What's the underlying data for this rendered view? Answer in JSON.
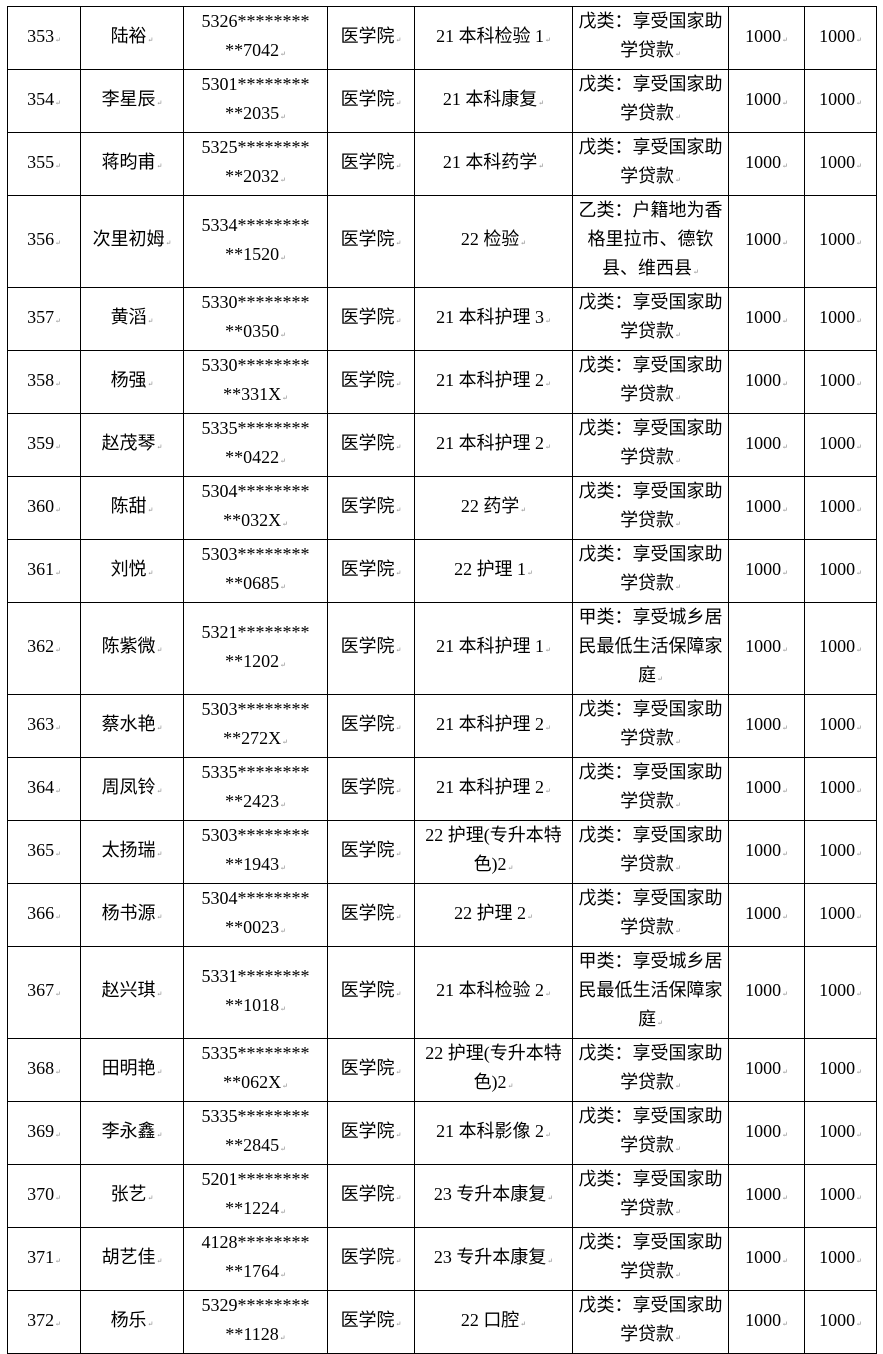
{
  "rows": [
    {
      "no": "353",
      "name": "陆裕",
      "id1": "5326********",
      "id2": "**7042",
      "college": "医学院",
      "class": "21 本科检验 1",
      "type": "戊类：享受国家助学贷款",
      "amount1": "1000",
      "amount2": "1000"
    },
    {
      "no": "354",
      "name": "李星辰",
      "id1": "5301********",
      "id2": "**2035",
      "college": "医学院",
      "class": "21 本科康复",
      "type": "戊类：享受国家助学贷款",
      "amount1": "1000",
      "amount2": "1000"
    },
    {
      "no": "355",
      "name": "蒋昀甫",
      "id1": "5325********",
      "id2": "**2032",
      "college": "医学院",
      "class": "21 本科药学",
      "type": "戊类：享受国家助学贷款",
      "amount1": "1000",
      "amount2": "1000"
    },
    {
      "no": "356",
      "name": "次里初姆",
      "id1": "5334********",
      "id2": "**1520",
      "college": "医学院",
      "class": "22 检验",
      "type": "乙类：户籍地为香格里拉市、德钦县、维西县",
      "amount1": "1000",
      "amount2": "1000"
    },
    {
      "no": "357",
      "name": "黄滔",
      "id1": "5330********",
      "id2": "**0350",
      "college": "医学院",
      "class": "21 本科护理 3",
      "type": "戊类：享受国家助学贷款",
      "amount1": "1000",
      "amount2": "1000"
    },
    {
      "no": "358",
      "name": "杨强",
      "id1": "5330********",
      "id2": "**331X",
      "college": "医学院",
      "class": "21 本科护理 2",
      "type": "戊类：享受国家助学贷款",
      "amount1": "1000",
      "amount2": "1000"
    },
    {
      "no": "359",
      "name": "赵茂琴",
      "id1": "5335********",
      "id2": "**0422",
      "college": "医学院",
      "class": "21 本科护理 2",
      "type": "戊类：享受国家助学贷款",
      "amount1": "1000",
      "amount2": "1000"
    },
    {
      "no": "360",
      "name": "陈甜",
      "id1": "5304********",
      "id2": "**032X",
      "college": "医学院",
      "class": "22 药学",
      "type": "戊类：享受国家助学贷款",
      "amount1": "1000",
      "amount2": "1000"
    },
    {
      "no": "361",
      "name": "刘悦",
      "id1": "5303********",
      "id2": "**0685",
      "college": "医学院",
      "class": "22 护理 1",
      "type": "戊类：享受国家助学贷款",
      "amount1": "1000",
      "amount2": "1000"
    },
    {
      "no": "362",
      "name": "陈紫微",
      "id1": "5321********",
      "id2": "**1202",
      "college": "医学院",
      "class": "21 本科护理 1",
      "type": "甲类：享受城乡居民最低生活保障家庭",
      "amount1": "1000",
      "amount2": "1000"
    },
    {
      "no": "363",
      "name": "蔡水艳",
      "id1": "5303********",
      "id2": "**272X",
      "college": "医学院",
      "class": "21 本科护理 2",
      "type": "戊类：享受国家助学贷款",
      "amount1": "1000",
      "amount2": "1000"
    },
    {
      "no": "364",
      "name": "周凤铃",
      "id1": "5335********",
      "id2": "**2423",
      "college": "医学院",
      "class": "21 本科护理 2",
      "type": "戊类：享受国家助学贷款",
      "amount1": "1000",
      "amount2": "1000"
    },
    {
      "no": "365",
      "name": "太扬瑞",
      "id1": "5303********",
      "id2": "**1943",
      "college": "医学院",
      "class": "22 护理(专升本特色)2",
      "type": "戊类：享受国家助学贷款",
      "amount1": "1000",
      "amount2": "1000"
    },
    {
      "no": "366",
      "name": "杨书源",
      "id1": "5304********",
      "id2": "**0023",
      "college": "医学院",
      "class": "22 护理 2",
      "type": "戊类：享受国家助学贷款",
      "amount1": "1000",
      "amount2": "1000"
    },
    {
      "no": "367",
      "name": "赵兴琪",
      "id1": "5331********",
      "id2": "**1018",
      "college": "医学院",
      "class": "21 本科检验 2",
      "type": "甲类：享受城乡居民最低生活保障家庭",
      "amount1": "1000",
      "amount2": "1000"
    },
    {
      "no": "368",
      "name": "田明艳",
      "id1": "5335********",
      "id2": "**062X",
      "college": "医学院",
      "class": "22 护理(专升本特色)2",
      "type": "戊类：享受国家助学贷款",
      "amount1": "1000",
      "amount2": "1000"
    },
    {
      "no": "369",
      "name": "李永鑫",
      "id1": "5335********",
      "id2": "**2845",
      "college": "医学院",
      "class": "21 本科影像 2",
      "type": "戊类：享受国家助学贷款",
      "amount1": "1000",
      "amount2": "1000"
    },
    {
      "no": "370",
      "name": "张艺",
      "id1": "5201********",
      "id2": "**1224",
      "college": "医学院",
      "class": "23 专升本康复",
      "type": "戊类：享受国家助学贷款",
      "amount1": "1000",
      "amount2": "1000"
    },
    {
      "no": "371",
      "name": "胡艺佳",
      "id1": "4128********",
      "id2": "**1764",
      "college": "医学院",
      "class": "23 专升本康复",
      "type": "戊类：享受国家助学贷款",
      "amount1": "1000",
      "amount2": "1000"
    },
    {
      "no": "372",
      "name": "杨乐",
      "id1": "5329********",
      "id2": "**1128",
      "college": "医学院",
      "class": "22 口腔",
      "type": "戊类：享受国家助学贷款",
      "amount1": "1000",
      "amount2": "1000"
    }
  ]
}
